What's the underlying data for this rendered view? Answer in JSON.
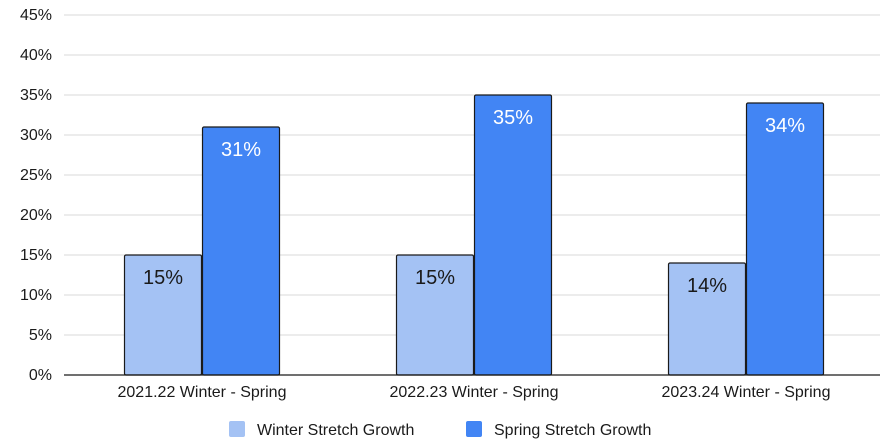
{
  "chart_data": {
    "type": "bar",
    "title": "",
    "xlabel": "",
    "ylabel": "",
    "categories": [
      "2021.22 Winter - Spring",
      "2022.23 Winter - Spring",
      "2023.24 Winter - Spring"
    ],
    "series": [
      {
        "name": "Winter Stretch Growth",
        "values": [
          15,
          15,
          14
        ],
        "labels": [
          "15%",
          "15%",
          "14%"
        ],
        "color": "#a4c2f4",
        "label_color": "#1a1a1a"
      },
      {
        "name": "Spring Stretch Growth",
        "values": [
          31,
          35,
          34
        ],
        "labels": [
          "31%",
          "35%",
          "34%"
        ],
        "color": "#4285f4",
        "label_color": "#ffffff"
      }
    ],
    "ylim": [
      0,
      45
    ],
    "yticks": [
      0,
      5,
      10,
      15,
      20,
      25,
      30,
      35,
      40,
      45
    ],
    "ytick_labels": [
      "0%",
      "5%",
      "10%",
      "15%",
      "20%",
      "25%",
      "30%",
      "35%",
      "40%",
      "45%"
    ],
    "grid": true,
    "grid_color": "#d9d9d9",
    "bar_outline_color": "#1a1a1a",
    "legend_position": "bottom-center"
  }
}
